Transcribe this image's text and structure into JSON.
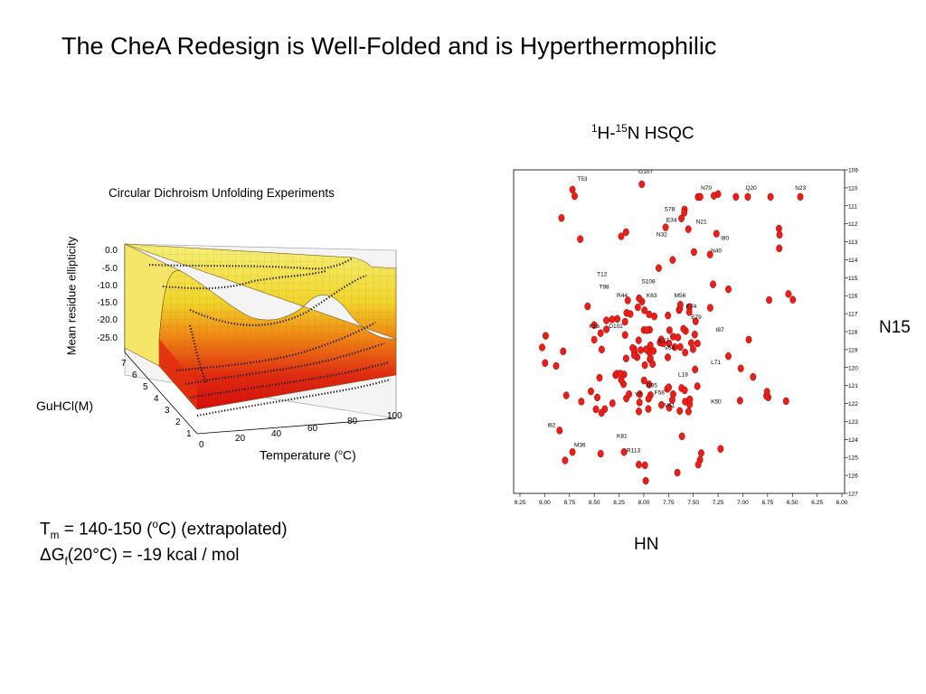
{
  "title": "The CheA Redesign is Well-Folded and is Hyperthermophilic",
  "cd": {
    "title": "Circular Dichroism Unfolding Experiments",
    "ylabel": "Mean residue ellipticity",
    "guhcl_label": "GuHCl(M)",
    "temp_label": "Temperature (",
    "temp_sup": "o",
    "temp_end": "C)",
    "z_ticks": [
      "0.0",
      "-5.0",
      "-10.0",
      "-15.0",
      "-20.0",
      "-25.0"
    ],
    "x_ticks": [
      "0",
      "20",
      "40",
      "60",
      "80",
      "100"
    ],
    "y_ticks": [
      "1",
      "2",
      "3",
      "4",
      "5",
      "6",
      "7"
    ]
  },
  "hsqc": {
    "title_sup1": "1",
    "title_mid": "H-",
    "title_sup2": "15",
    "title_end": "N HSQC",
    "n15_label": "N15",
    "hn_label": "HN",
    "x_ticks": [
      "9.25",
      "9.00",
      "8.75",
      "8.50",
      "8.25",
      "8.00",
      "7.75",
      "7.50",
      "7.25",
      "7.00",
      "6.75",
      "6.50",
      "6.25",
      "6.00"
    ],
    "y_ticks": [
      "109",
      "110",
      "111",
      "112",
      "113",
      "114",
      "115",
      "116",
      "117",
      "118",
      "119",
      "120",
      "121",
      "122",
      "123",
      "124",
      "125",
      "126",
      "127"
    ],
    "peak_labels": [
      "G107",
      "T53",
      "N70",
      "Q20",
      "N23",
      "S78",
      "E34",
      "N21",
      "N32",
      "I80",
      "N40",
      "T12",
      "S108",
      "T98",
      "R44",
      "K63",
      "M56",
      "K74",
      "E79",
      "K16",
      "D102",
      "K27",
      "I87",
      "V64",
      "L71",
      "L18",
      "D95",
      "Y7",
      "F58",
      "V61",
      "K50",
      "I82",
      "M36",
      "K81",
      "R113"
    ]
  },
  "notes": {
    "tm_T": "T",
    "tm_sub": "m",
    "tm_rest1": " = 140-150 (",
    "tm_sup": "o",
    "tm_rest2": "C) (extrapolated)",
    "dg_delta": "Δ",
    "dg_G": "G",
    "dg_sub": "f",
    "dg_rest": "(20°C) = -19 kcal / mol"
  }
}
